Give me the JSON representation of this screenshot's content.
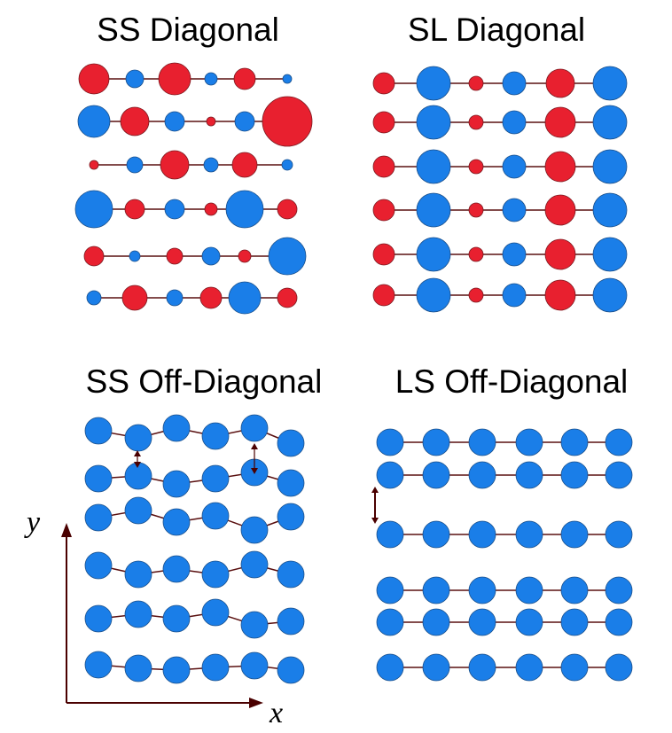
{
  "colors": {
    "red": "#e8202f",
    "blue": "#1a7ee8",
    "blue_stroke": "#1a4f8a",
    "red_stroke": "#7a1a20",
    "bond": "#5a1010",
    "axis": "#4a0000"
  },
  "panels": [
    {
      "title": "SS Diagonal",
      "rows": [
        {
          "atoms": [
            [
              "r",
              17
            ],
            [
              "b",
              10
            ],
            [
              "r",
              18
            ],
            [
              "b",
              7
            ],
            [
              "r",
              12
            ],
            [
              "b",
              5
            ]
          ]
        },
        {
          "atoms": [
            [
              "b",
              18
            ],
            [
              "r",
              16
            ],
            [
              "b",
              11
            ],
            [
              "r",
              5
            ],
            [
              "b",
              11
            ],
            [
              "r",
              28
            ]
          ]
        },
        {
          "atoms": [
            [
              "r",
              5
            ],
            [
              "b",
              9
            ],
            [
              "r",
              16
            ],
            [
              "b",
              8
            ],
            [
              "r",
              14
            ],
            [
              "b",
              6
            ]
          ]
        },
        {
          "atoms": [
            [
              "b",
              21
            ],
            [
              "r",
              11
            ],
            [
              "b",
              11
            ],
            [
              "r",
              7
            ],
            [
              "b",
              21
            ],
            [
              "r",
              11
            ]
          ]
        },
        {
          "atoms": [
            [
              "r",
              11
            ],
            [
              "b",
              6
            ],
            [
              "r",
              9
            ],
            [
              "b",
              10
            ],
            [
              "r",
              7
            ],
            [
              "b",
              21
            ]
          ]
        },
        {
          "atoms": [
            [
              "b",
              8
            ],
            [
              "r",
              14
            ],
            [
              "b",
              9
            ],
            [
              "r",
              12
            ],
            [
              "b",
              18
            ],
            [
              "r",
              11
            ]
          ]
        }
      ]
    },
    {
      "title": "SL Diagonal",
      "rows": [
        {
          "atoms": [
            [
              "r",
              12
            ],
            [
              "b",
              19
            ],
            [
              "r",
              8
            ],
            [
              "b",
              13
            ],
            [
              "r",
              16
            ],
            [
              "b",
              19
            ]
          ]
        },
        {
          "atoms": [
            [
              "r",
              12
            ],
            [
              "b",
              19
            ],
            [
              "r",
              8
            ],
            [
              "b",
              13
            ],
            [
              "r",
              17
            ],
            [
              "b",
              19
            ]
          ]
        },
        {
          "atoms": [
            [
              "r",
              12
            ],
            [
              "b",
              19
            ],
            [
              "r",
              8
            ],
            [
              "b",
              13
            ],
            [
              "r",
              17
            ],
            [
              "b",
              19
            ]
          ]
        },
        {
          "atoms": [
            [
              "r",
              12
            ],
            [
              "b",
              19
            ],
            [
              "r",
              8
            ],
            [
              "b",
              13
            ],
            [
              "r",
              17
            ],
            [
              "b",
              19
            ]
          ]
        },
        {
          "atoms": [
            [
              "r",
              12
            ],
            [
              "b",
              19
            ],
            [
              "r",
              8
            ],
            [
              "b",
              13
            ],
            [
              "r",
              17
            ],
            [
              "b",
              19
            ]
          ]
        },
        {
          "atoms": [
            [
              "r",
              12
            ],
            [
              "b",
              19
            ],
            [
              "r",
              8
            ],
            [
              "b",
              13
            ],
            [
              "r",
              17
            ],
            [
              "b",
              19
            ]
          ]
        }
      ]
    },
    {
      "title": "SS Off-Diagonal",
      "rows": [
        {
          "atoms": [
            [
              "b",
              15
            ],
            [
              "b",
              15
            ],
            [
              "b",
              15
            ],
            [
              "b",
              15
            ],
            [
              "b",
              15
            ],
            [
              "b",
              15
            ]
          ]
        },
        {
          "atoms": [
            [
              "b",
              15
            ],
            [
              "b",
              15
            ],
            [
              "b",
              15
            ],
            [
              "b",
              15
            ],
            [
              "b",
              15
            ],
            [
              "b",
              15
            ]
          ]
        },
        {
          "atoms": [
            [
              "b",
              15
            ],
            [
              "b",
              15
            ],
            [
              "b",
              15
            ],
            [
              "b",
              15
            ],
            [
              "b",
              15
            ],
            [
              "b",
              15
            ]
          ]
        },
        {
          "atoms": [
            [
              "b",
              15
            ],
            [
              "b",
              15
            ],
            [
              "b",
              15
            ],
            [
              "b",
              15
            ],
            [
              "b",
              15
            ],
            [
              "b",
              15
            ]
          ]
        },
        {
          "atoms": [
            [
              "b",
              15
            ],
            [
              "b",
              15
            ],
            [
              "b",
              15
            ],
            [
              "b",
              15
            ],
            [
              "b",
              15
            ],
            [
              "b",
              15
            ]
          ]
        },
        {
          "atoms": [
            [
              "b",
              15
            ],
            [
              "b",
              15
            ],
            [
              "b",
              15
            ],
            [
              "b",
              15
            ],
            [
              "b",
              15
            ],
            [
              "b",
              15
            ]
          ]
        }
      ]
    },
    {
      "title": "LS Off-Diagonal",
      "rows": [
        {
          "atoms": [
            [
              "b",
              15
            ],
            [
              "b",
              15
            ],
            [
              "b",
              15
            ],
            [
              "b",
              15
            ],
            [
              "b",
              15
            ],
            [
              "b",
              15
            ]
          ]
        },
        {
          "atoms": [
            [
              "b",
              15
            ],
            [
              "b",
              15
            ],
            [
              "b",
              15
            ],
            [
              "b",
              15
            ],
            [
              "b",
              15
            ],
            [
              "b",
              15
            ]
          ]
        },
        {
          "atoms": [
            [
              "b",
              15
            ],
            [
              "b",
              15
            ],
            [
              "b",
              15
            ],
            [
              "b",
              15
            ],
            [
              "b",
              15
            ],
            [
              "b",
              15
            ]
          ]
        },
        {
          "atoms": [
            [
              "b",
              15
            ],
            [
              "b",
              15
            ],
            [
              "b",
              15
            ],
            [
              "b",
              15
            ],
            [
              "b",
              15
            ],
            [
              "b",
              15
            ]
          ]
        },
        {
          "atoms": [
            [
              "b",
              15
            ],
            [
              "b",
              15
            ],
            [
              "b",
              15
            ],
            [
              "b",
              15
            ],
            [
              "b",
              15
            ],
            [
              "b",
              15
            ]
          ]
        },
        {
          "atoms": [
            [
              "b",
              15
            ],
            [
              "b",
              15
            ],
            [
              "b",
              15
            ],
            [
              "b",
              15
            ],
            [
              "b",
              15
            ],
            [
              "b",
              15
            ]
          ]
        }
      ]
    }
  ],
  "axes": {
    "x_label": "x",
    "y_label": "y"
  }
}
